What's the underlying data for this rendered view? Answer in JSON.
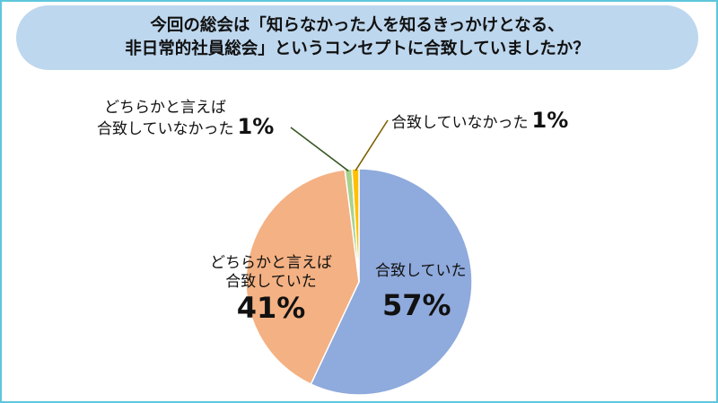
{
  "title": {
    "line1": "今回の総会は「知らなかった人を知るきっかけとなる、",
    "line2": "非日常的社員総会」というコンセプトに合致していましたか？"
  },
  "chart_data": {
    "type": "pie",
    "title": "今回の総会は「知らなかった人を知るきっかけとなる、非日常的社員総会」というコンセプトに合致していましたか？",
    "slices": [
      {
        "label": "合致していた",
        "value": 57,
        "display": "57%",
        "color": "#8faadc"
      },
      {
        "label": "どちらかと言えば合致していた",
        "value": 41,
        "display": "41%",
        "color": "#f4b183"
      },
      {
        "label": "どちらかと言えば合致していなかった",
        "value": 1,
        "display": "1%",
        "color": "#a9d18e"
      },
      {
        "label": "合致していなかった",
        "value": 1,
        "display": "1%",
        "color": "#ffc000"
      }
    ],
    "start": "12 o'clock",
    "direction": "clockwise"
  },
  "labels": {
    "s0_line1": "合致していた",
    "s1_line1": "どちらかと言えば",
    "s1_line2": "合致していた",
    "s2_line1": "どちらかと言えば",
    "s2_line2": "合致していなかった",
    "s3_line1": "合致していなかった"
  }
}
